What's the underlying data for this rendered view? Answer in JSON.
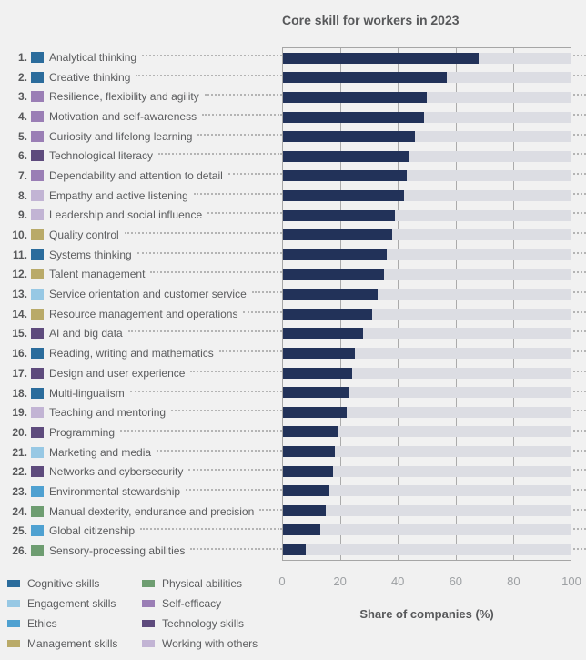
{
  "chart_data": {
    "type": "bar",
    "orientation": "horizontal",
    "title": "Core skill for workers in 2023",
    "xlabel": "Share of companies (%)",
    "xlim": [
      0,
      100
    ],
    "xticks": [
      0,
      20,
      40,
      60,
      80,
      100
    ],
    "grid": true,
    "legend_position": "bottom-left",
    "categories": [
      "Analytical thinking",
      "Creative thinking",
      "Resilience, flexibility and agility",
      "Motivation and self-awareness",
      "Curiosity and lifelong learning",
      "Technological literacy",
      "Dependability and attention to detail",
      "Empathy and active listening",
      "Leadership and social influence",
      "Quality control",
      "Systems thinking",
      "Talent management",
      "Service orientation and customer service",
      "Resource management and operations",
      "AI and big data",
      "Reading, writing and mathematics",
      "Design and user experience",
      "Multi-lingualism",
      "Teaching and mentoring",
      "Programming",
      "Marketing and media",
      "Networks and cybersecurity",
      "Environmental stewardship",
      "Manual dexterity, endurance and precision",
      "Global citizenship",
      "Sensory-processing abilities"
    ],
    "values": [
      68,
      57,
      50,
      49,
      46,
      44,
      43,
      42,
      39,
      38,
      36,
      35,
      33,
      31,
      28,
      25,
      24,
      23,
      22,
      19,
      18,
      17.5,
      16,
      15,
      13,
      8
    ],
    "rows": [
      {
        "rank": "1.",
        "label": "Analytical thinking",
        "category": "cognitive",
        "value": 68
      },
      {
        "rank": "2.",
        "label": "Creative thinking",
        "category": "cognitive",
        "value": 57
      },
      {
        "rank": "3.",
        "label": "Resilience, flexibility and agility",
        "category": "self_efficacy",
        "value": 50
      },
      {
        "rank": "4.",
        "label": "Motivation and self-awareness",
        "category": "self_efficacy",
        "value": 49
      },
      {
        "rank": "5.",
        "label": "Curiosity and lifelong learning",
        "category": "self_efficacy",
        "value": 46
      },
      {
        "rank": "6.",
        "label": "Technological literacy",
        "category": "technology",
        "value": 44
      },
      {
        "rank": "7.",
        "label": "Dependability and attention to detail",
        "category": "self_efficacy",
        "value": 43
      },
      {
        "rank": "8.",
        "label": "Empathy and active listening",
        "category": "working",
        "value": 42
      },
      {
        "rank": "9.",
        "label": "Leadership and social influence",
        "category": "working",
        "value": 39
      },
      {
        "rank": "10.",
        "label": "Quality control",
        "category": "management",
        "value": 38
      },
      {
        "rank": "11.",
        "label": "Systems thinking",
        "category": "cognitive",
        "value": 36
      },
      {
        "rank": "12.",
        "label": "Talent management",
        "category": "management",
        "value": 35
      },
      {
        "rank": "13.",
        "label": "Service orientation and customer service",
        "category": "engagement",
        "value": 33
      },
      {
        "rank": "14.",
        "label": "Resource management and operations",
        "category": "management",
        "value": 31
      },
      {
        "rank": "15.",
        "label": "AI and big data",
        "category": "technology",
        "value": 28
      },
      {
        "rank": "16.",
        "label": "Reading, writing and mathematics",
        "category": "cognitive",
        "value": 25
      },
      {
        "rank": "17.",
        "label": "Design and user experience",
        "category": "technology",
        "value": 24
      },
      {
        "rank": "18.",
        "label": "Multi-lingualism",
        "category": "cognitive",
        "value": 23
      },
      {
        "rank": "19.",
        "label": "Teaching and mentoring",
        "category": "working",
        "value": 22
      },
      {
        "rank": "20.",
        "label": "Programming",
        "category": "technology",
        "value": 19
      },
      {
        "rank": "21.",
        "label": "Marketing and media",
        "category": "engagement",
        "value": 18
      },
      {
        "rank": "22.",
        "label": "Networks and cybersecurity",
        "category": "technology",
        "value": 17.5
      },
      {
        "rank": "23.",
        "label": "Environmental stewardship",
        "category": "ethics",
        "value": 16
      },
      {
        "rank": "24.",
        "label": "Manual dexterity, endurance and precision",
        "category": "physical",
        "value": 15
      },
      {
        "rank": "25.",
        "label": "Global citizenship",
        "category": "ethics",
        "value": 13
      },
      {
        "rank": "26.",
        "label": "Sensory-processing abilities",
        "category": "physical",
        "value": 8
      }
    ],
    "legend_columns": [
      [
        {
          "key": "cognitive",
          "label": "Cognitive skills"
        },
        {
          "key": "engagement",
          "label": "Engagement skills"
        },
        {
          "key": "ethics",
          "label": "Ethics"
        },
        {
          "key": "management",
          "label": "Management skills"
        }
      ],
      [
        {
          "key": "physical",
          "label": "Physical abilities"
        },
        {
          "key": "self_efficacy",
          "label": "Self-efficacy"
        },
        {
          "key": "technology",
          "label": "Technology skills"
        },
        {
          "key": "working",
          "label": "Working with others"
        }
      ]
    ]
  },
  "colors": {
    "bar": "#223259",
    "track": "#dcdde3",
    "gridline": "#ababab",
    "categories": {
      "cognitive": "#2b6c9c",
      "engagement": "#97c8e4",
      "ethics": "#4fa1d1",
      "management": "#b9aa69",
      "physical": "#6e9d71",
      "self_efficacy": "#9a7eb5",
      "technology": "#5e4b7d",
      "working": "#c2b4d4"
    }
  }
}
